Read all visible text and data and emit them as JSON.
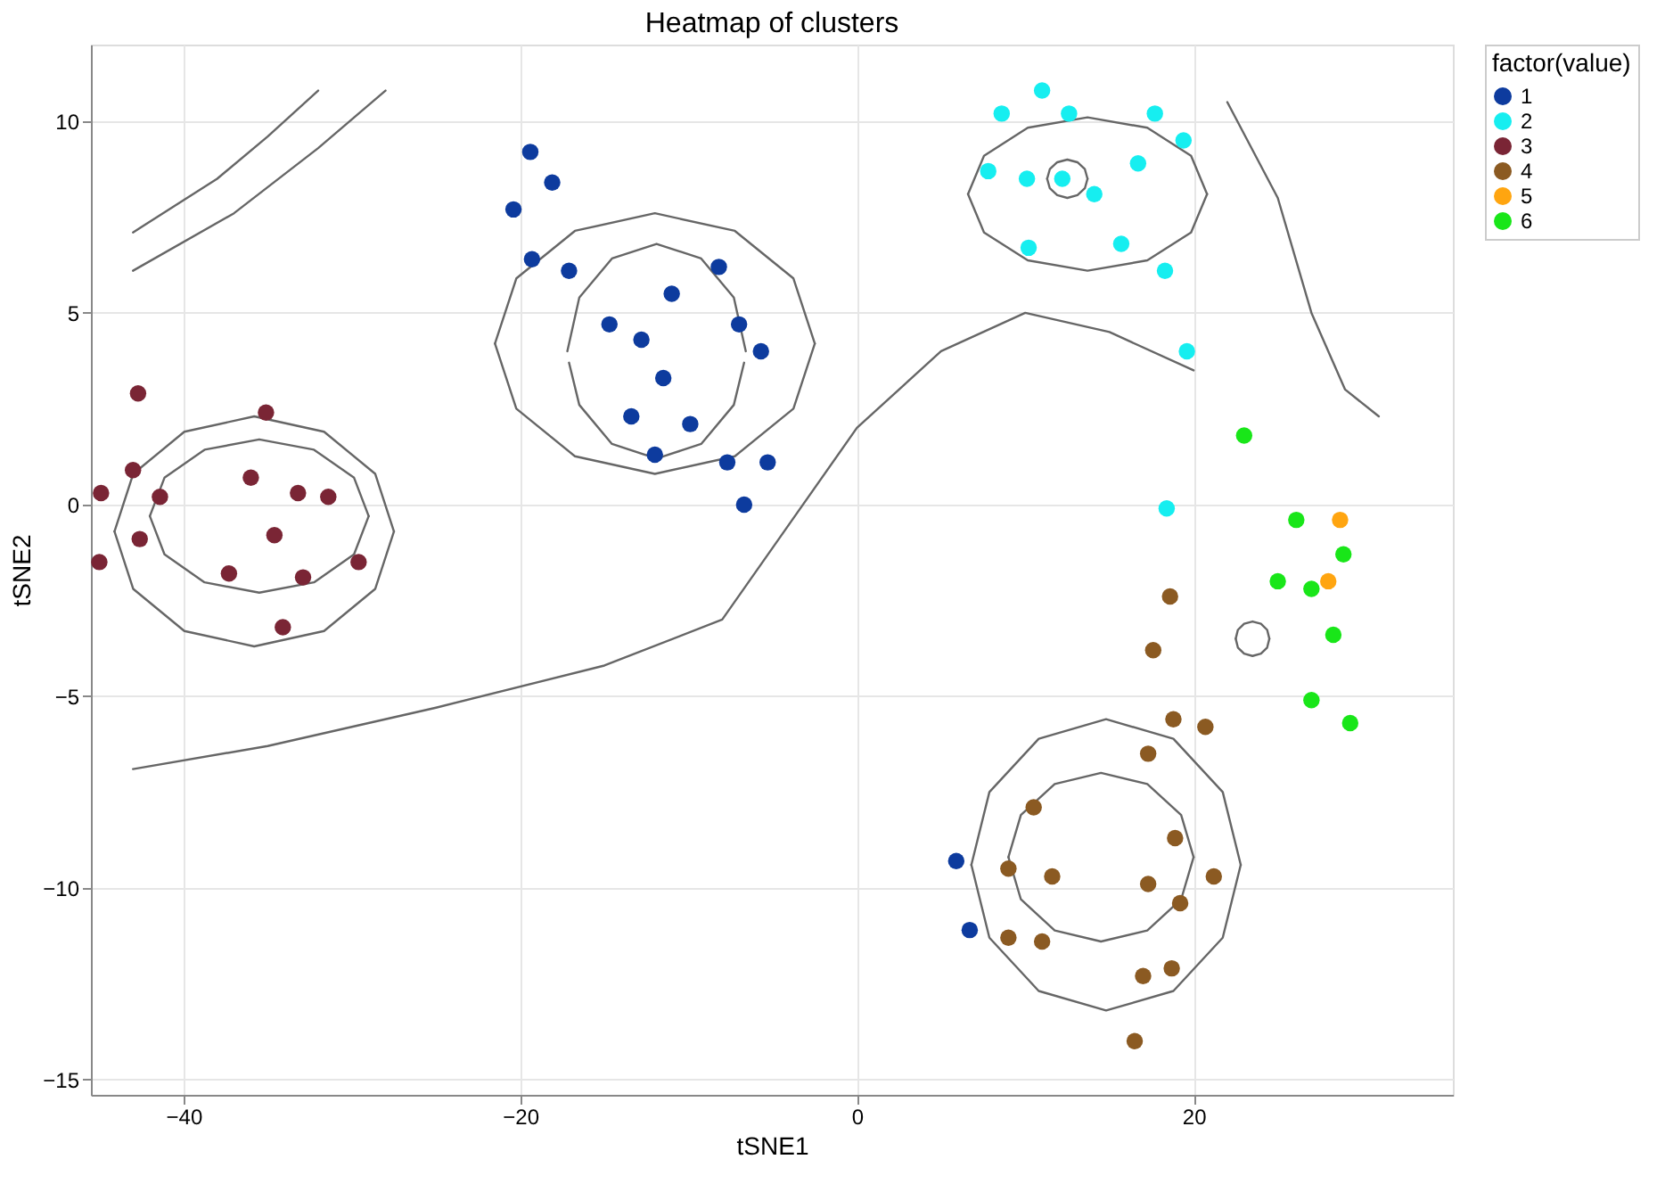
{
  "chart_data": {
    "type": "scatter",
    "title": "Heatmap of clusters",
    "xlabel": "tSNE1",
    "ylabel": "tSNE2",
    "legend_title": "factor(value)",
    "legend": "right",
    "grid": true,
    "marker": "circle",
    "xlim": [
      -45.5,
      35.4
    ],
    "ylim": [
      -15.4,
      12.0
    ],
    "xticks": [
      -40,
      -20,
      0,
      20
    ],
    "yticks": [
      -15,
      -10,
      -5,
      0,
      5,
      10
    ],
    "series": [
      {
        "type": "line",
        "marker": "none",
        "color": "#666666",
        "x": [
          13.7,
          13.54,
          13.1,
          12.5,
          11.9,
          11.46,
          11.3
        ],
        "values": [
          8.5,
          8.75,
          8.93,
          9.0,
          8.93,
          8.75,
          8.5
        ]
      },
      {
        "type": "line",
        "marker": "none",
        "color": "#666666",
        "x": [
          11.3,
          11.46,
          11.9,
          12.5,
          13.1,
          13.54,
          13.7
        ],
        "values": [
          8.5,
          8.25,
          8.07,
          8.0,
          8.07,
          8.25,
          8.5
        ]
      },
      {
        "type": "line",
        "marker": "none",
        "color": "#666666",
        "x": [
          -6.6,
          -7.31,
          -9.25,
          -11.9,
          -14.55,
          -16.49,
          -17.2
        ],
        "values": [
          4.0,
          5.4,
          6.42,
          6.8,
          6.42,
          5.4,
          4.0
        ]
      },
      {
        "type": "line",
        "marker": "none",
        "color": "#666666",
        "x": [
          -17.1,
          -16.49,
          -14.55,
          -11.9,
          -9.25,
          -7.31,
          -6.7
        ],
        "values": [
          3.7,
          2.6,
          1.58,
          1.2,
          1.58,
          2.6,
          3.7
        ]
      },
      {
        "type": "line",
        "marker": "none",
        "color": "#666666",
        "x": [
          -2.5,
          -3.77,
          -7.25,
          -12,
          -16.75,
          -20.23,
          -21.5
        ],
        "values": [
          4.2,
          5.9,
          7.14,
          7.6,
          7.14,
          5.9,
          4.2
        ]
      },
      {
        "type": "line",
        "marker": "none",
        "color": "#666666",
        "x": [
          -21.5,
          -20.23,
          -16.75,
          -12,
          -7.25,
          -3.77,
          -2.5
        ],
        "values": [
          4.2,
          2.5,
          1.26,
          0.8,
          1.26,
          2.5,
          4.2
        ]
      },
      {
        "type": "line",
        "marker": "none",
        "color": "#666666",
        "x": [
          -29,
          -29.87,
          -32.25,
          -35.5,
          -38.75,
          -41.13,
          -42
        ],
        "values": [
          -0.3,
          0.7,
          1.43,
          1.7,
          1.43,
          0.7,
          -0.3
        ]
      },
      {
        "type": "line",
        "marker": "none",
        "color": "#666666",
        "x": [
          -42,
          -41.13,
          -38.75,
          -35.5,
          -32.25,
          -29.87,
          -29
        ],
        "values": [
          -0.3,
          -1.3,
          -2.03,
          -2.3,
          -2.03,
          -1.3,
          -0.3
        ]
      },
      {
        "type": "line",
        "marker": "none",
        "color": "#666666",
        "x": [
          -27.5,
          -28.61,
          -31.65,
          -35.8,
          -39.95,
          -42.99,
          -44.1
        ],
        "values": [
          -0.7,
          0.8,
          1.9,
          2.3,
          1.9,
          0.8,
          -0.7
        ]
      },
      {
        "type": "line",
        "marker": "none",
        "color": "#666666",
        "x": [
          -44.1,
          -42.99,
          -39.95,
          -35.8,
          -31.65,
          -28.61,
          -27.5
        ],
        "values": [
          -0.7,
          -2.2,
          -3.3,
          -3.7,
          -3.3,
          -2.2,
          -0.7
        ]
      },
      {
        "type": "line",
        "marker": "none",
        "color": "#666666",
        "x": [
          20.8,
          19.85,
          17.25,
          13.7,
          10.15,
          7.55,
          6.6
        ],
        "values": [
          8.1,
          9.1,
          9.83,
          10.1,
          9.83,
          9.1,
          8.1
        ]
      },
      {
        "type": "line",
        "marker": "none",
        "color": "#666666",
        "x": [
          6.6,
          7.55,
          10.15,
          13.7,
          17.25,
          19.85,
          20.8
        ],
        "values": [
          8.1,
          7.1,
          6.37,
          6.1,
          6.37,
          7.1,
          8.1
        ]
      },
      {
        "type": "line",
        "marker": "none",
        "color": "#666666",
        "x": [
          20,
          19.26,
          17.25,
          14.5,
          11.75,
          9.74,
          9
        ],
        "values": [
          -9.2,
          -8.1,
          -7.29,
          -7.0,
          -7.29,
          -8.1,
          -9.2
        ]
      },
      {
        "type": "line",
        "marker": "none",
        "color": "#666666",
        "x": [
          9,
          9.74,
          11.75,
          14.5,
          17.25,
          19.26,
          20
        ],
        "values": [
          -9.2,
          -10.3,
          -11.11,
          -11.4,
          -11.11,
          -10.3,
          -9.2
        ]
      },
      {
        "type": "line",
        "marker": "none",
        "color": "#666666",
        "x": [
          22.8,
          21.73,
          18.8,
          14.8,
          10.8,
          7.87,
          6.8
        ],
        "values": [
          -9.4,
          -7.5,
          -6.11,
          -5.6,
          -6.11,
          -7.5,
          -9.4
        ]
      },
      {
        "type": "line",
        "marker": "none",
        "color": "#666666",
        "x": [
          6.8,
          7.87,
          10.8,
          14.8,
          18.8,
          21.73,
          22.8
        ],
        "values": [
          -9.4,
          -11.3,
          -12.69,
          -13.2,
          -12.69,
          -11.3,
          -9.4
        ]
      },
      {
        "type": "line",
        "marker": "none",
        "color": "#666666",
        "x": [
          24.5,
          24.37,
          24,
          23.5,
          23,
          22.63,
          22.5
        ],
        "values": [
          -3.5,
          -3.27,
          -3.11,
          -3.05,
          -3.11,
          -3.27,
          -3.5
        ]
      },
      {
        "type": "line",
        "marker": "none",
        "color": "#666666",
        "x": [
          22.5,
          22.63,
          23,
          23.5,
          24,
          24.37,
          24.5
        ],
        "values": [
          -3.5,
          -3.73,
          -3.89,
          -3.95,
          -3.89,
          -3.73,
          -3.5
        ]
      },
      {
        "type": "line",
        "marker": "none",
        "color": "#666666",
        "x": [
          -43,
          -35,
          -25,
          -15,
          -8,
          -4,
          0,
          5,
          10,
          15,
          20
        ],
        "values": [
          -6.9,
          -6.3,
          -5.3,
          -4.2,
          -3.0,
          -0.5,
          2.0,
          4.0,
          5.0,
          4.5,
          3.5
        ]
      },
      {
        "type": "line",
        "marker": "none",
        "color": "#666666",
        "x": [
          -43,
          -38,
          -35,
          -32
        ],
        "values": [
          7.1,
          8.5,
          9.6,
          10.8
        ]
      },
      {
        "type": "line",
        "marker": "none",
        "color": "#666666",
        "x": [
          -43,
          -37,
          -32,
          -28
        ],
        "values": [
          6.1,
          7.6,
          9.3,
          10.8
        ]
      },
      {
        "type": "line",
        "marker": "none",
        "color": "#666666",
        "x": [
          22,
          25,
          27,
          29,
          31
        ],
        "values": [
          10.5,
          8,
          5,
          3,
          2.3
        ]
      },
      {
        "name": "1",
        "color": "#0d3b9e",
        "x": [
          -19.4,
          -20.4,
          -18.1,
          -19.3,
          -17.1,
          -14.7,
          -12.8,
          -11.0,
          -8.2,
          -7.0,
          -5.7,
          -11.5,
          -13.4,
          -9.9,
          -12.0,
          -7.7,
          -5.3,
          -6.7,
          5.9,
          6.7
        ],
        "values": [
          9.2,
          7.7,
          8.4,
          6.4,
          6.1,
          4.7,
          4.3,
          5.5,
          6.2,
          4.7,
          4.0,
          3.3,
          2.3,
          2.1,
          1.3,
          1.1,
          1.1,
          0.0,
          -9.3,
          -11.1
        ]
      },
      {
        "name": "2",
        "color": "#16eef0",
        "x": [
          8.6,
          11.0,
          12.6,
          17.7,
          19.4,
          7.8,
          10.1,
          12.2,
          14.1,
          16.7,
          10.2,
          15.7,
          18.3,
          19.6,
          18.4
        ],
        "values": [
          10.2,
          10.8,
          10.2,
          10.2,
          9.5,
          8.7,
          8.5,
          8.5,
          8.1,
          8.9,
          6.7,
          6.8,
          6.1,
          4.0,
          -0.1
        ]
      },
      {
        "name": "3",
        "color": "#7a2535",
        "x": [
          -44.9,
          -45.0,
          -42.7,
          -43.0,
          -42.6,
          -41.4,
          -35.1,
          -36.0,
          -37.3,
          -34.6,
          -33.2,
          -31.4,
          -32.9,
          -29.6,
          -34.1
        ],
        "values": [
          0.3,
          -1.5,
          2.9,
          0.9,
          -0.9,
          0.2,
          2.4,
          0.7,
          -1.8,
          -0.8,
          0.3,
          0.2,
          -1.9,
          -1.5,
          -3.2
        ]
      },
      {
        "name": "4",
        "color": "#8b5a22",
        "x": [
          18.6,
          17.6,
          18.8,
          20.7,
          17.3,
          10.5,
          9.0,
          11.6,
          17.3,
          18.9,
          21.2,
          19.2,
          9.0,
          11.0,
          18.7,
          17.0,
          16.5
        ],
        "values": [
          -2.4,
          -3.8,
          -5.6,
          -5.8,
          -6.5,
          -7.9,
          -9.5,
          -9.7,
          -9.9,
          -8.7,
          -9.7,
          -10.4,
          -11.3,
          -11.4,
          -12.1,
          -12.3,
          -14.0
        ]
      },
      {
        "name": "5",
        "color": "#ffa510",
        "x": [
          28.7,
          28.0
        ],
        "values": [
          -0.4,
          -2.0
        ]
      },
      {
        "name": "6",
        "color": "#19e619",
        "x": [
          23.0,
          26.1,
          25.0,
          27.0,
          28.9,
          28.3,
          27.0,
          29.3
        ],
        "values": [
          1.8,
          -0.4,
          -2.0,
          -2.2,
          -1.3,
          -3.4,
          -5.1,
          -5.7
        ]
      }
    ]
  }
}
